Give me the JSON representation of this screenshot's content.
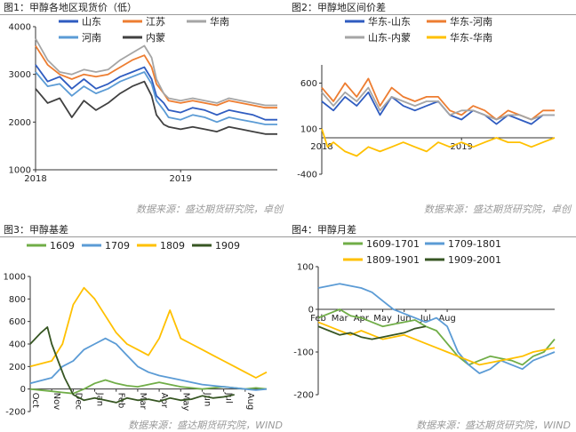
{
  "charts": [
    {
      "id": "c1",
      "title": "图1：甲醇各地区现货价（低）",
      "source": "数据来源：盛达期货研究院，卓创",
      "chart_data": {
        "type": "line",
        "ylim": [
          1000,
          4000
        ],
        "yticks": [
          1000,
          2000,
          3000,
          4000
        ],
        "xlim": [
          0,
          20
        ],
        "xticks": [
          {
            "v": 0,
            "label": "2018"
          },
          {
            "v": 12,
            "label": "2019"
          }
        ],
        "legend_cols": 3,
        "series": [
          {
            "name": "山东",
            "color": "#2f5cc0",
            "x": [
              0,
              1,
              2,
              3,
              4,
              5,
              6,
              7,
              8,
              9,
              9.6,
              10,
              10.6,
              11,
              12,
              13,
              14,
              15,
              16,
              17,
              18,
              19,
              20
            ],
            "y": [
              3200,
              2850,
              2950,
              2700,
              2900,
              2700,
              2800,
              2950,
              3050,
              3150,
              2900,
              2550,
              2400,
              2250,
              2200,
              2300,
              2250,
              2150,
              2250,
              2200,
              2150,
              2050,
              2050
            ]
          },
          {
            "name": "江苏",
            "color": "#ed7d31",
            "x": [
              0,
              1,
              2,
              3,
              4,
              5,
              6,
              7,
              8,
              9,
              9.6,
              10,
              10.6,
              11,
              12,
              13,
              14,
              15,
              16,
              17,
              18,
              19,
              20
            ],
            "y": [
              3600,
              3200,
              3000,
              2900,
              3000,
              2950,
              3000,
              3150,
              3300,
              3400,
              3150,
              2800,
              2600,
              2450,
              2400,
              2450,
              2400,
              2350,
              2450,
              2400,
              2350,
              2300,
              2300
            ]
          },
          {
            "name": "华南",
            "color": "#a5a5a5",
            "x": [
              0,
              1,
              2,
              3,
              4,
              5,
              6,
              7,
              8,
              9,
              9.6,
              10,
              10.6,
              11,
              12,
              13,
              14,
              15,
              16,
              17,
              18,
              19,
              20
            ],
            "y": [
              3750,
              3300,
              3050,
              3000,
              3100,
              3050,
              3100,
              3300,
              3450,
              3600,
              3350,
              2900,
              2600,
              2500,
              2450,
              2500,
              2450,
              2400,
              2500,
              2450,
              2400,
              2350,
              2350
            ]
          },
          {
            "name": "河南",
            "color": "#5b9bd5",
            "x": [
              0,
              1,
              2,
              3,
              4,
              5,
              6,
              7,
              8,
              9,
              9.6,
              10,
              10.6,
              11,
              12,
              13,
              14,
              15,
              16,
              17,
              18,
              19,
              20
            ],
            "y": [
              3050,
              2750,
              2800,
              2550,
              2750,
              2600,
              2700,
              2850,
              2950,
              3050,
              2800,
              2450,
              2250,
              2100,
              2050,
              2150,
              2100,
              2000,
              2100,
              2050,
              2000,
              1950,
              1950
            ]
          },
          {
            "name": "内蒙",
            "color": "#404040",
            "x": [
              0,
              1,
              2,
              3,
              4,
              5,
              6,
              7,
              8,
              9,
              9.6,
              10,
              10.6,
              11,
              12,
              13,
              14,
              15,
              16,
              17,
              18,
              19,
              20
            ],
            "y": [
              2700,
              2400,
              2500,
              2100,
              2450,
              2250,
              2400,
              2600,
              2750,
              2850,
              2550,
              2150,
              1950,
              1900,
              1850,
              1900,
              1850,
              1800,
              1900,
              1850,
              1800,
              1750,
              1750
            ]
          }
        ]
      }
    },
    {
      "id": "c2",
      "title": "图2：甲醇地区间价差",
      "source": "数据来源：盛达期货研究院，卓创",
      "chart_data": {
        "type": "line",
        "ylim": [
          -400,
          800
        ],
        "yticks": [
          -400,
          100,
          600
        ],
        "xlim": [
          0,
          20
        ],
        "xticks": [
          {
            "v": 0,
            "label": "2018"
          },
          {
            "v": 12,
            "label": "2019"
          }
        ],
        "x_labels_at_zero": true,
        "legend_cols": 2,
        "series": [
          {
            "name": "华东-山东",
            "color": "#2f5cc0",
            "x": [
              0,
              1,
              2,
              3,
              4,
              5,
              6,
              7,
              8,
              9,
              10,
              11,
              12,
              13,
              14,
              15,
              16,
              17,
              18,
              19,
              20
            ],
            "y": [
              400,
              300,
              450,
              350,
              500,
              250,
              450,
              350,
              300,
              350,
              400,
              250,
              200,
              300,
              250,
              150,
              250,
              200,
              150,
              250,
              250
            ]
          },
          {
            "name": "华东-河南",
            "color": "#ed7d31",
            "x": [
              0,
              1,
              2,
              3,
              4,
              5,
              6,
              7,
              8,
              9,
              10,
              11,
              12,
              13,
              14,
              15,
              16,
              17,
              18,
              19,
              20
            ],
            "y": [
              550,
              400,
              600,
              450,
              650,
              350,
              550,
              450,
              400,
              450,
              450,
              300,
              250,
              350,
              300,
              200,
              300,
              250,
              200,
              300,
              300
            ]
          },
          {
            "name": "山东-内蒙",
            "color": "#a5a5a5",
            "x": [
              0,
              1,
              2,
              3,
              4,
              5,
              6,
              7,
              8,
              9,
              10,
              11,
              12,
              13,
              14,
              15,
              16,
              17,
              18,
              19,
              20
            ],
            "y": [
              500,
              350,
              500,
              400,
              550,
              300,
              450,
              400,
              350,
              400,
              400,
              250,
              300,
              300,
              250,
              200,
              250,
              250,
              200,
              250,
              250
            ]
          },
          {
            "name": "华东-华南",
            "color": "#ffc000",
            "x": [
              0,
              0.5,
              1,
              2,
              3,
              4,
              5,
              6,
              7,
              8,
              9,
              10,
              11,
              12,
              13,
              14,
              15,
              16,
              17,
              18,
              19,
              20
            ],
            "y": [
              100,
              -100,
              -50,
              -150,
              -200,
              -100,
              -150,
              -100,
              -50,
              -100,
              -150,
              -50,
              -100,
              -50,
              -100,
              -50,
              0,
              -50,
              -50,
              -100,
              -50,
              0
            ]
          }
        ]
      }
    },
    {
      "id": "c3",
      "title": "图3：甲醇基差",
      "source": "数据来源：盛达期货研究院，WIND",
      "chart_data": {
        "type": "line",
        "ylim": [
          -200,
          1000
        ],
        "yticks": [
          -200,
          0,
          200,
          400,
          600,
          800,
          1000
        ],
        "xlim": [
          0,
          11
        ],
        "xticks": [
          {
            "v": 0,
            "label": "Oct"
          },
          {
            "v": 1,
            "label": "Nov"
          },
          {
            "v": 2,
            "label": "Dec"
          },
          {
            "v": 3,
            "label": "Jan"
          },
          {
            "v": 4,
            "label": "Feb"
          },
          {
            "v": 5,
            "label": "Mar"
          },
          {
            "v": 6,
            "label": "Apr"
          },
          {
            "v": 7,
            "label": "May"
          },
          {
            "v": 8,
            "label": "Jun"
          },
          {
            "v": 9,
            "label": "Jul"
          },
          {
            "v": 10,
            "label": "Aug"
          }
        ],
        "x_labels_at_zero": true,
        "rotate_xlabels": true,
        "legend_cols": 4,
        "series": [
          {
            "name": "1609",
            "color": "#70ad47",
            "x": [
              0,
              1,
              1.5,
              2,
              2.5,
              3,
              3.5,
              4,
              4.5,
              5,
              5.5,
              6,
              6.5,
              7,
              7.5,
              8,
              8.5,
              9,
              9.5,
              10,
              10.5,
              11
            ],
            "y": [
              0,
              -20,
              -30,
              -40,
              0,
              50,
              80,
              50,
              30,
              20,
              40,
              60,
              40,
              20,
              10,
              0,
              10,
              20,
              10,
              0,
              10,
              0
            ]
          },
          {
            "name": "1709",
            "color": "#5b9bd5",
            "x": [
              0,
              1,
              1.5,
              2,
              2.5,
              3,
              3.5,
              4,
              4.5,
              5,
              5.5,
              6,
              6.5,
              7,
              7.5,
              8,
              8.5,
              9,
              9.5,
              10,
              10.5,
              11
            ],
            "y": [
              50,
              100,
              200,
              250,
              350,
              400,
              450,
              400,
              300,
              200,
              150,
              120,
              100,
              80,
              60,
              40,
              30,
              20,
              10,
              0,
              -10,
              0
            ]
          },
          {
            "name": "1809",
            "color": "#ffc000",
            "x": [
              0,
              1,
              1.5,
              2,
              2.5,
              3,
              3.5,
              4,
              4.5,
              5,
              5.5,
              6,
              6.5,
              7,
              7.5,
              8,
              8.5,
              9,
              9.5,
              10,
              10.5,
              11
            ],
            "y": [
              200,
              250,
              400,
              750,
              900,
              800,
              650,
              500,
              400,
              350,
              300,
              450,
              700,
              450,
              400,
              350,
              300,
              250,
              200,
              150,
              100,
              150
            ]
          },
          {
            "name": "1909",
            "color": "#375623",
            "x": [
              0,
              0.5,
              0.8,
              1,
              1.3,
              1.6,
              2,
              2.5,
              3,
              3.5,
              4,
              4.5,
              5,
              5.5,
              6,
              6.5,
              7,
              7.5,
              8,
              8.5,
              9,
              9.5
            ],
            "y": [
              400,
              500,
              550,
              400,
              250,
              100,
              -50,
              -100,
              -80,
              -100,
              -120,
              -80,
              -100,
              -90,
              -110,
              -80,
              -100,
              -90,
              -60,
              -80,
              -70,
              -50
            ]
          }
        ]
      }
    },
    {
      "id": "c4",
      "title": "图4：甲醇月差",
      "source": "数据来源：盛达期货研究院，WIND",
      "chart_data": {
        "type": "line",
        "ylim": [
          -200,
          100
        ],
        "yticks": [
          -200,
          -100,
          0,
          100
        ],
        "xlim": [
          0,
          11
        ],
        "xticks": [
          {
            "v": 0,
            "label": "Feb"
          },
          {
            "v": 1,
            "label": "Mar"
          },
          {
            "v": 2,
            "label": "Apr"
          },
          {
            "v": 3,
            "label": "May"
          },
          {
            "v": 4,
            "label": "Jun"
          },
          {
            "v": 5,
            "label": "Jul"
          },
          {
            "v": 6,
            "label": "Aug"
          }
        ],
        "x_labels_at_zero": true,
        "legend_cols": 2,
        "series": [
          {
            "name": "1609-1701",
            "color": "#70ad47",
            "x": [
              0,
              0.5,
              1,
              1.5,
              2,
              2.5,
              3,
              3.5,
              4,
              4.5,
              5,
              5.5,
              6,
              6.5,
              7,
              7.5,
              8,
              8.5,
              9,
              9.5,
              10,
              10.5,
              11
            ],
            "y": [
              -20,
              -10,
              0,
              -15,
              -20,
              -30,
              -40,
              -35,
              -30,
              -25,
              -40,
              -50,
              -80,
              -110,
              -130,
              -120,
              -110,
              -115,
              -120,
              -130,
              -110,
              -100,
              -70
            ]
          },
          {
            "name": "1709-1801",
            "color": "#5b9bd5",
            "x": [
              0,
              0.5,
              1,
              1.5,
              2,
              2.5,
              3,
              3.5,
              4,
              4.5,
              5,
              5.5,
              6,
              6.5,
              7,
              7.5,
              8,
              8.5,
              9,
              9.5,
              10,
              10.5,
              11
            ],
            "y": [
              50,
              55,
              60,
              55,
              50,
              40,
              20,
              0,
              -10,
              -20,
              -30,
              -20,
              -40,
              -100,
              -130,
              -150,
              -140,
              -120,
              -130,
              -140,
              -120,
              -110,
              -100
            ]
          },
          {
            "name": "1809-1901",
            "color": "#ffc000",
            "x": [
              0,
              0.5,
              1,
              1.5,
              2,
              2.5,
              3,
              3.5,
              4,
              4.5,
              5,
              5.5,
              6,
              6.5,
              7,
              7.5,
              8,
              8.5,
              9,
              9.5,
              10,
              10.5,
              11
            ],
            "y": [
              -30,
              -40,
              -50,
              -60,
              -50,
              -60,
              -70,
              -65,
              -60,
              -70,
              -80,
              -90,
              -100,
              -110,
              -120,
              -130,
              -125,
              -120,
              -115,
              -110,
              -100,
              -95,
              -90
            ]
          },
          {
            "name": "1909-2001",
            "color": "#375623",
            "x": [
              0,
              0.5,
              1,
              1.5,
              2,
              2.5,
              3,
              3.5,
              4,
              4.5,
              5
            ],
            "y": [
              -40,
              -50,
              -60,
              -55,
              -65,
              -70,
              -65,
              -60,
              -55,
              -45,
              -40
            ]
          }
        ]
      }
    }
  ]
}
